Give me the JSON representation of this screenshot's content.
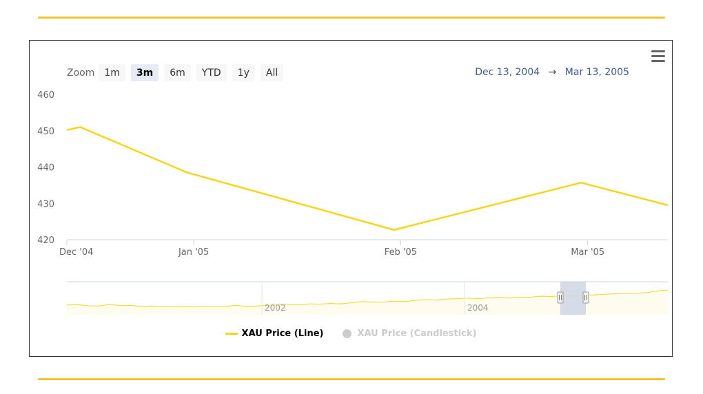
{
  "toolbar": {
    "zoom_label": "Zoom",
    "buttons": [
      "1m",
      "3m",
      "6m",
      "YTD",
      "1y",
      "All"
    ],
    "active": "3m"
  },
  "range": {
    "from": "Dec 13, 2004",
    "arrow": "→",
    "to": "Mar 13, 2005"
  },
  "colors": {
    "series": "#f7d51a",
    "rule": "#f2c430",
    "navigator_mask": "#d0d8e6",
    "hidden": "#cccccc"
  },
  "chart_data": {
    "type": "line",
    "title": "",
    "ylim": [
      420,
      460
    ],
    "yticks": [
      "460",
      "450",
      "440",
      "430",
      "420"
    ],
    "xticks": [
      {
        "label": "Dec '04",
        "date": "2004-12-13"
      },
      {
        "label": "Jan '05",
        "date": "2005-01-01"
      },
      {
        "label": "Feb '05",
        "date": "2005-02-01"
      },
      {
        "label": "Mar '05",
        "date": "2005-03-01"
      }
    ],
    "xrange": [
      "2004-12-13",
      "2005-03-13"
    ],
    "series": [
      {
        "name": "XAU Price (Line)",
        "x": [
          "2004-12-13",
          "2004-12-15",
          "2004-12-31",
          "2005-01-31",
          "2005-02-28",
          "2005-03-13"
        ],
        "values": [
          450.2,
          451.0,
          438.5,
          422.7,
          435.7,
          429.5
        ]
      }
    ],
    "navigator": {
      "tick_labels": [
        "2002",
        "2004"
      ],
      "selected_range": [
        "2004-12-13",
        "2005-03-13"
      ]
    },
    "legend": [
      {
        "name": "XAU Price (Line)",
        "visible": true
      },
      {
        "name": "XAU Price (Candlestick)",
        "visible": false
      }
    ],
    "legend_position": "bottom-center",
    "grid": false
  }
}
